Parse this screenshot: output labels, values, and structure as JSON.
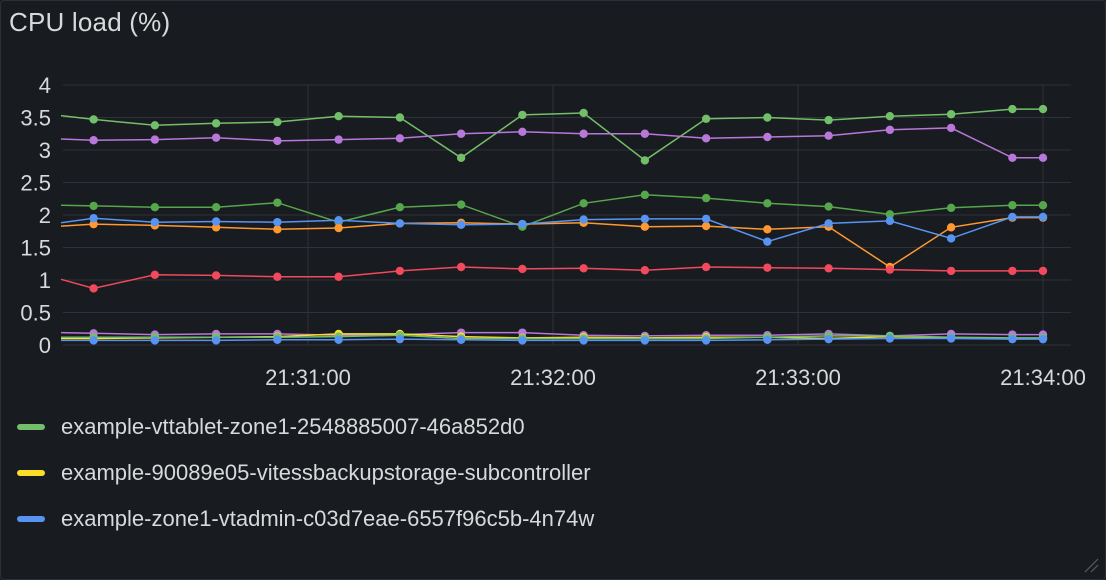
{
  "panel": {
    "title": "CPU load (%)"
  },
  "chart_data": {
    "type": "line",
    "title": "CPU load (%)",
    "xlabel": "",
    "ylabel": "",
    "ylim": [
      0,
      4
    ],
    "y_ticks": [
      "0",
      "0.5",
      "1",
      "1.5",
      "2",
      "2.5",
      "3",
      "3.5",
      "4"
    ],
    "x_tick_labels": [
      "21:31:00",
      "21:32:00",
      "21:33:00",
      "21:34:00"
    ],
    "x_tick_seconds": [
      60,
      120,
      180,
      240
    ],
    "x_seconds": [
      -0.5,
      7.5,
      22.5,
      37.5,
      52.5,
      67.5,
      82.5,
      97.5,
      112.5,
      127.5,
      142.5,
      157.5,
      172.5,
      187.5,
      202.5,
      217.5,
      232.5,
      240
    ],
    "grid": true,
    "legend_position": "bottom",
    "series": [
      {
        "name": "example-vttablet-zone1-2548885007-46a852d0",
        "color": "#73bf69",
        "values": [
          3.53,
          3.47,
          3.38,
          3.41,
          3.43,
          3.52,
          3.5,
          2.88,
          3.54,
          3.57,
          2.84,
          3.48,
          3.5,
          3.46,
          3.52,
          3.55,
          3.63,
          3.63
        ]
      },
      {
        "name": "",
        "color": "#b877d9",
        "values": [
          3.17,
          3.15,
          3.16,
          3.19,
          3.14,
          3.16,
          3.18,
          3.25,
          3.28,
          3.25,
          3.25,
          3.18,
          3.2,
          3.22,
          3.31,
          3.34,
          2.88,
          2.88
        ]
      },
      {
        "name": "",
        "color": "#56a64b",
        "values": [
          2.15,
          2.14,
          2.12,
          2.12,
          2.19,
          1.89,
          2.12,
          2.16,
          1.82,
          2.18,
          2.31,
          2.26,
          2.18,
          2.13,
          2.01,
          2.11,
          2.15,
          2.15
        ]
      },
      {
        "name": "",
        "color": "#ff9830",
        "values": [
          1.83,
          1.86,
          1.84,
          1.81,
          1.78,
          1.8,
          1.87,
          1.88,
          1.86,
          1.88,
          1.82,
          1.83,
          1.78,
          1.82,
          1.2,
          1.81,
          1.96,
          1.96
        ]
      },
      {
        "name": "example-zone1-vtadmin-c03d7eae-6557f96c5b-4n74w",
        "color": "#5794f2",
        "values": [
          1.88,
          1.95,
          1.89,
          1.9,
          1.89,
          1.92,
          1.87,
          1.85,
          1.86,
          1.93,
          1.94,
          1.94,
          1.59,
          1.87,
          1.91,
          1.64,
          1.97,
          1.97
        ]
      },
      {
        "name": "",
        "color": "#f2495c",
        "values": [
          1.01,
          0.87,
          1.08,
          1.07,
          1.05,
          1.05,
          1.14,
          1.2,
          1.17,
          1.18,
          1.15,
          1.2,
          1.19,
          1.18,
          1.16,
          1.14,
          1.14,
          1.14
        ]
      },
      {
        "name": "",
        "color": "#b877d9",
        "values": [
          0.19,
          0.18,
          0.16,
          0.17,
          0.17,
          0.15,
          0.16,
          0.19,
          0.19,
          0.15,
          0.14,
          0.15,
          0.15,
          0.17,
          0.14,
          0.17,
          0.16,
          0.16
        ]
      },
      {
        "name": "example-90089e05-vitessbackupstorage-subcontroller",
        "color": "#fade2a",
        "values": [
          0.1,
          0.1,
          0.11,
          0.12,
          0.13,
          0.17,
          0.17,
          0.13,
          0.11,
          0.12,
          0.11,
          0.12,
          0.12,
          0.1,
          0.13,
          0.11,
          0.1,
          0.1
        ]
      },
      {
        "name": "",
        "color": "#73bf69",
        "values": [
          0.12,
          0.12,
          0.12,
          0.12,
          0.12,
          0.13,
          0.15,
          0.1,
          0.1,
          0.1,
          0.1,
          0.1,
          0.12,
          0.14,
          0.14,
          0.12,
          0.11,
          0.11
        ]
      },
      {
        "name": "",
        "color": "#5794f2",
        "values": [
          0.07,
          0.07,
          0.07,
          0.07,
          0.08,
          0.08,
          0.09,
          0.08,
          0.07,
          0.07,
          0.07,
          0.07,
          0.08,
          0.09,
          0.1,
          0.1,
          0.09,
          0.09
        ]
      }
    ]
  },
  "legend": {
    "items": [
      {
        "label": "example-vttablet-zone1-2548885007-46a852d0",
        "color": "#73bf69"
      },
      {
        "label": "example-90089e05-vitessbackupstorage-subcontroller",
        "color": "#fade2a"
      },
      {
        "label": "example-zone1-vtadmin-c03d7eae-6557f96c5b-4n74w",
        "color": "#5794f2"
      }
    ]
  }
}
